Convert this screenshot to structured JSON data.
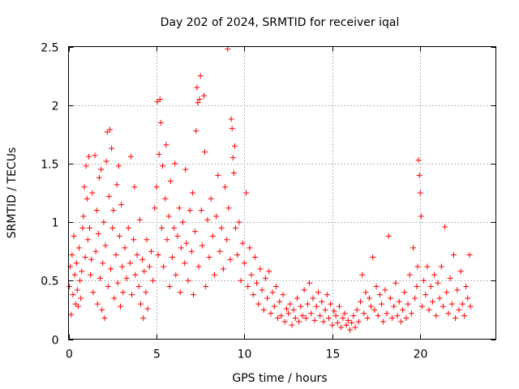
{
  "chart_data": {
    "type": "scatter",
    "title": "Day 202 of 2024, SRMTID for receiver iqal",
    "xlabel": "GPS time / hours",
    "ylabel": "SRMTID / TECUs",
    "xlim": [
      0,
      24.3
    ],
    "ylim": [
      0,
      2.5
    ],
    "x_ticks": [
      0,
      5,
      10,
      15,
      20
    ],
    "x_tick_labels": [
      "0",
      "5",
      "10",
      "15",
      "20"
    ],
    "y_ticks": [
      0,
      0.5,
      1,
      1.5,
      2,
      2.5
    ],
    "y_tick_labels": [
      "0",
      "0.5",
      "1",
      "1.5",
      "2",
      "2.5"
    ],
    "grid": true,
    "marker": "+",
    "color": "#ff0000",
    "series": [
      {
        "name": "SRMTID",
        "points": [
          [
            0.05,
            0.45
          ],
          [
            0.1,
            0.62
          ],
          [
            0.15,
            0.21
          ],
          [
            0.2,
            0.72
          ],
          [
            0.25,
            0.38
          ],
          [
            0.3,
            0.88
          ],
          [
            0.35,
            0.55
          ],
          [
            0.4,
            0.3
          ],
          [
            0.45,
            0.65
          ],
          [
            0.5,
            0.42
          ],
          [
            0.55,
            0.28
          ],
          [
            0.6,
            0.78
          ],
          [
            0.65,
            0.5
          ],
          [
            0.7,
            0.35
          ],
          [
            0.75,
            0.58
          ],
          [
            0.8,
            0.95
          ],
          [
            0.85,
            1.05
          ],
          [
            0.9,
            1.3
          ],
          [
            0.95,
            0.7
          ],
          [
            1.0,
            1.48
          ],
          [
            1.05,
            1.2
          ],
          [
            1.1,
            0.85
          ],
          [
            1.15,
            1.56
          ],
          [
            1.2,
            0.95
          ],
          [
            1.25,
            0.55
          ],
          [
            1.3,
            0.68
          ],
          [
            1.35,
            1.25
          ],
          [
            1.4,
            0.4
          ],
          [
            1.5,
            1.57
          ],
          [
            1.55,
            0.75
          ],
          [
            1.6,
            1.1
          ],
          [
            1.65,
            0.3
          ],
          [
            1.7,
            0.9
          ],
          [
            1.75,
            1.38
          ],
          [
            1.8,
            0.52
          ],
          [
            1.85,
            1.45
          ],
          [
            1.9,
            0.25
          ],
          [
            1.95,
            0.65
          ],
          [
            2.0,
            1.0
          ],
          [
            2.05,
            0.18
          ],
          [
            2.1,
            0.8
          ],
          [
            2.15,
            1.52
          ],
          [
            2.2,
            1.77
          ],
          [
            2.25,
            0.45
          ],
          [
            2.3,
            1.22
          ],
          [
            2.35,
            1.79
          ],
          [
            2.4,
            0.6
          ],
          [
            2.45,
            1.63
          ],
          [
            2.5,
            0.95
          ],
          [
            2.55,
            1.1
          ],
          [
            2.6,
            0.35
          ],
          [
            2.7,
            0.72
          ],
          [
            2.75,
            1.32
          ],
          [
            2.8,
            0.48
          ],
          [
            2.85,
            1.48
          ],
          [
            2.9,
            0.88
          ],
          [
            2.95,
            0.28
          ],
          [
            3.0,
            1.15
          ],
          [
            3.05,
            0.62
          ],
          [
            3.1,
            0.4
          ],
          [
            3.2,
            0.78
          ],
          [
            3.3,
            0.52
          ],
          [
            3.4,
            0.95
          ],
          [
            3.5,
            0.65
          ],
          [
            3.55,
            1.56
          ],
          [
            3.6,
            0.38
          ],
          [
            3.7,
            0.85
          ],
          [
            3.75,
            1.3
          ],
          [
            3.8,
            0.55
          ],
          [
            3.9,
            0.72
          ],
          [
            4.0,
            0.45
          ],
          [
            4.05,
            1.02
          ],
          [
            4.1,
            0.3
          ],
          [
            4.2,
            0.68
          ],
          [
            4.25,
            0.18
          ],
          [
            4.3,
            0.58
          ],
          [
            4.4,
            0.4
          ],
          [
            4.45,
            0.85
          ],
          [
            4.5,
            0.26
          ],
          [
            4.6,
            0.62
          ],
          [
            4.7,
            0.75
          ],
          [
            4.8,
            0.5
          ],
          [
            4.9,
            1.12
          ],
          [
            5.0,
            1.3
          ],
          [
            5.05,
            2.03
          ],
          [
            5.1,
            0.72
          ],
          [
            5.15,
            1.58
          ],
          [
            5.2,
            2.05
          ],
          [
            5.25,
            1.85
          ],
          [
            5.3,
            0.95
          ],
          [
            5.35,
            1.48
          ],
          [
            5.4,
            0.62
          ],
          [
            5.5,
            1.2
          ],
          [
            5.55,
            1.66
          ],
          [
            5.6,
            0.85
          ],
          [
            5.7,
            1.05
          ],
          [
            5.75,
            0.45
          ],
          [
            5.8,
            1.35
          ],
          [
            5.9,
            0.7
          ],
          [
            6.0,
            0.95
          ],
          [
            6.05,
            1.5
          ],
          [
            6.1,
            0.55
          ],
          [
            6.2,
            0.88
          ],
          [
            6.3,
            1.12
          ],
          [
            6.35,
            0.4
          ],
          [
            6.4,
            0.78
          ],
          [
            6.5,
            1.0
          ],
          [
            6.6,
            0.65
          ],
          [
            6.65,
            1.45
          ],
          [
            6.7,
            0.82
          ],
          [
            6.8,
            0.5
          ],
          [
            6.9,
            1.1
          ],
          [
            7.0,
            0.75
          ],
          [
            7.05,
            1.25
          ],
          [
            7.1,
            0.38
          ],
          [
            7.2,
            0.92
          ],
          [
            7.25,
            1.78
          ],
          [
            7.3,
            2.15
          ],
          [
            7.35,
            2.02
          ],
          [
            7.4,
            0.62
          ],
          [
            7.45,
            2.05
          ],
          [
            7.5,
            2.25
          ],
          [
            7.55,
            1.1
          ],
          [
            7.6,
            0.8
          ],
          [
            7.7,
            2.08
          ],
          [
            7.75,
            1.6
          ],
          [
            7.8,
            0.45
          ],
          [
            7.9,
            1.02
          ],
          [
            8.0,
            0.7
          ],
          [
            8.1,
            1.2
          ],
          [
            8.2,
            0.88
          ],
          [
            8.3,
            0.55
          ],
          [
            8.4,
            1.05
          ],
          [
            8.5,
            1.4
          ],
          [
            8.6,
            0.75
          ],
          [
            8.7,
            0.95
          ],
          [
            8.8,
            0.6
          ],
          [
            8.9,
            1.3
          ],
          [
            9.0,
            0.85
          ],
          [
            9.05,
            2.48
          ],
          [
            9.1,
            1.12
          ],
          [
            9.2,
            0.68
          ],
          [
            9.25,
            1.88
          ],
          [
            9.3,
            1.8
          ],
          [
            9.35,
            1.55
          ],
          [
            9.4,
            1.42
          ],
          [
            9.45,
            1.65
          ],
          [
            9.5,
            0.95
          ],
          [
            9.6,
            0.72
          ],
          [
            9.7,
            1.0
          ],
          [
            9.8,
            0.5
          ],
          [
            9.9,
            0.82
          ],
          [
            10.0,
            0.65
          ],
          [
            10.1,
            1.25
          ],
          [
            10.2,
            0.45
          ],
          [
            10.3,
            0.78
          ],
          [
            10.4,
            0.55
          ],
          [
            10.5,
            0.38
          ],
          [
            10.6,
            0.7
          ],
          [
            10.7,
            0.48
          ],
          [
            10.8,
            0.3
          ],
          [
            10.9,
            0.6
          ],
          [
            11.0,
            0.42
          ],
          [
            11.1,
            0.25
          ],
          [
            11.2,
            0.52
          ],
          [
            11.3,
            0.35
          ],
          [
            11.4,
            0.58
          ],
          [
            11.5,
            0.22
          ],
          [
            11.6,
            0.4
          ],
          [
            11.7,
            0.28
          ],
          [
            11.8,
            0.45
          ],
          [
            11.9,
            0.18
          ],
          [
            12.0,
            0.32
          ],
          [
            12.1,
            0.2
          ],
          [
            12.2,
            0.38
          ],
          [
            12.3,
            0.15
          ],
          [
            12.4,
            0.26
          ],
          [
            12.5,
            0.22
          ],
          [
            12.6,
            0.3
          ],
          [
            12.7,
            0.12
          ],
          [
            12.8,
            0.25
          ],
          [
            12.9,
            0.18
          ],
          [
            13.0,
            0.35
          ],
          [
            13.1,
            0.15
          ],
          [
            13.2,
            0.28
          ],
          [
            13.3,
            0.2
          ],
          [
            13.4,
            0.42
          ],
          [
            13.5,
            0.18
          ],
          [
            13.6,
            0.3
          ],
          [
            13.7,
            0.48
          ],
          [
            13.8,
            0.22
          ],
          [
            13.9,
            0.35
          ],
          [
            14.0,
            0.16
          ],
          [
            14.1,
            0.28
          ],
          [
            14.2,
            0.4
          ],
          [
            14.3,
            0.2
          ],
          [
            14.4,
            0.32
          ],
          [
            14.5,
            0.15
          ],
          [
            14.6,
            0.25
          ],
          [
            14.7,
            0.38
          ],
          [
            14.8,
            0.18
          ],
          [
            14.9,
            0.3
          ],
          [
            15.0,
            0.12
          ],
          [
            15.1,
            0.24
          ],
          [
            15.2,
            0.2
          ],
          [
            15.3,
            0.14
          ],
          [
            15.4,
            0.28
          ],
          [
            15.5,
            0.1
          ],
          [
            15.6,
            0.18
          ],
          [
            15.7,
            0.22
          ],
          [
            15.8,
            0.12
          ],
          [
            15.9,
            0.16
          ],
          [
            16.0,
            0.08
          ],
          [
            16.1,
            0.14
          ],
          [
            16.2,
            0.2
          ],
          [
            16.3,
            0.1
          ],
          [
            16.4,
            0.25
          ],
          [
            16.5,
            0.15
          ],
          [
            16.6,
            0.32
          ],
          [
            16.7,
            0.55
          ],
          [
            16.8,
            0.22
          ],
          [
            16.9,
            0.4
          ],
          [
            17.0,
            0.18
          ],
          [
            17.1,
            0.35
          ],
          [
            17.2,
            0.28
          ],
          [
            17.3,
            0.7
          ],
          [
            17.4,
            0.25
          ],
          [
            17.5,
            0.45
          ],
          [
            17.6,
            0.2
          ],
          [
            17.7,
            0.38
          ],
          [
            17.8,
            0.3
          ],
          [
            17.9,
            0.15
          ],
          [
            18.0,
            0.42
          ],
          [
            18.1,
            0.22
          ],
          [
            18.2,
            0.88
          ],
          [
            18.3,
            0.35
          ],
          [
            18.4,
            0.18
          ],
          [
            18.5,
            0.28
          ],
          [
            18.6,
            0.48
          ],
          [
            18.7,
            0.2
          ],
          [
            18.8,
            0.32
          ],
          [
            18.9,
            0.15
          ],
          [
            19.0,
            0.25
          ],
          [
            19.1,
            0.4
          ],
          [
            19.2,
            0.18
          ],
          [
            19.3,
            0.3
          ],
          [
            19.4,
            0.55
          ],
          [
            19.5,
            0.22
          ],
          [
            19.6,
            0.78
          ],
          [
            19.7,
            0.35
          ],
          [
            19.8,
            0.45
          ],
          [
            19.85,
            0.62
          ],
          [
            19.9,
            1.53
          ],
          [
            19.95,
            1.4
          ],
          [
            20.0,
            1.25
          ],
          [
            20.05,
            1.05
          ],
          [
            20.1,
            0.28
          ],
          [
            20.2,
            0.5
          ],
          [
            20.3,
            0.38
          ],
          [
            20.4,
            0.62
          ],
          [
            20.5,
            0.25
          ],
          [
            20.6,
            0.45
          ],
          [
            20.7,
            0.32
          ],
          [
            20.8,
            0.55
          ],
          [
            20.9,
            0.2
          ],
          [
            21.0,
            0.48
          ],
          [
            21.1,
            0.35
          ],
          [
            21.2,
            0.62
          ],
          [
            21.3,
            0.28
          ],
          [
            21.4,
            0.96
          ],
          [
            21.5,
            0.4
          ],
          [
            21.6,
            0.22
          ],
          [
            21.7,
            0.52
          ],
          [
            21.8,
            0.3
          ],
          [
            21.9,
            0.72
          ],
          [
            22.0,
            0.18
          ],
          [
            22.1,
            0.42
          ],
          [
            22.2,
            0.25
          ],
          [
            22.3,
            0.58
          ],
          [
            22.4,
            0.3
          ],
          [
            22.5,
            0.2
          ],
          [
            22.6,
            0.45
          ],
          [
            22.7,
            0.35
          ],
          [
            22.8,
            0.72
          ],
          [
            22.85,
            0.28
          ]
        ]
      }
    ]
  }
}
